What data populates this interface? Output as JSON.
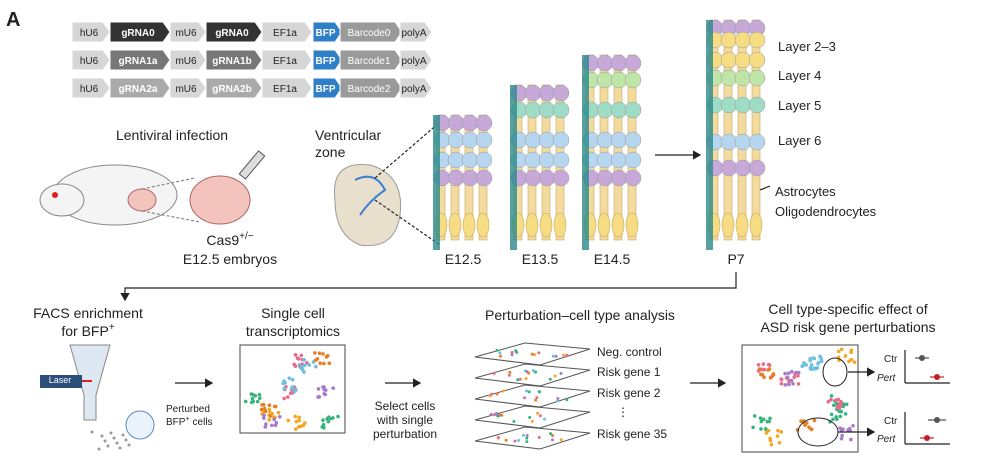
{
  "panel_label": "A",
  "constructs": [
    [
      "hU6",
      "gRNA0",
      "mU6",
      "gRNA0",
      "EF1a",
      "BFP",
      "Barcode0",
      "polyA"
    ],
    [
      "hU6",
      "gRNA1a",
      "mU6",
      "gRNA1b",
      "EF1a",
      "BFP",
      "Barcode1",
      "polyA"
    ],
    [
      "hU6",
      "gRNA2a",
      "mU6",
      "gRNA2b",
      "EF1a",
      "BFP",
      "Barcode2",
      "polyA"
    ]
  ],
  "infection": {
    "title": "Lentiviral infection",
    "mouse_label": "Cas9",
    "mouse_label_sup": "+/−",
    "embryo_label": "E12.5 embryos"
  },
  "ventricular_zone": [
    "Ventricular",
    "zone"
  ],
  "stages": [
    "E12.5",
    "E13.5",
    "E14.5",
    "P7"
  ],
  "layers": [
    "Layer 2–3",
    "Layer 4",
    "Layer 5",
    "Layer 6"
  ],
  "glia": [
    "Astrocytes",
    "Oligodendrocytes"
  ],
  "facs": {
    "title": [
      "FACS enrichment",
      "for BFP"
    ],
    "title_sup": "+",
    "laser": "Laser",
    "cells_line1": "Perturbed",
    "cells_line2": "BFP",
    "cells_sup": "+",
    "cells_end": "cells"
  },
  "single_cell": [
    "Single cell",
    "transcriptomics"
  ],
  "select": [
    "Select cells",
    "with single",
    "perturbation"
  ],
  "analysis": {
    "title": "Perturbation–cell type analysis",
    "layers": [
      "Neg. control",
      "Risk gene 1",
      "Risk gene 2",
      "⋮",
      "Risk gene 35"
    ]
  },
  "effect": {
    "title": [
      "Cell type-specific effect of",
      "ASD risk gene perturbations"
    ],
    "ctr": "Ctr",
    "pert": "Pert"
  }
}
